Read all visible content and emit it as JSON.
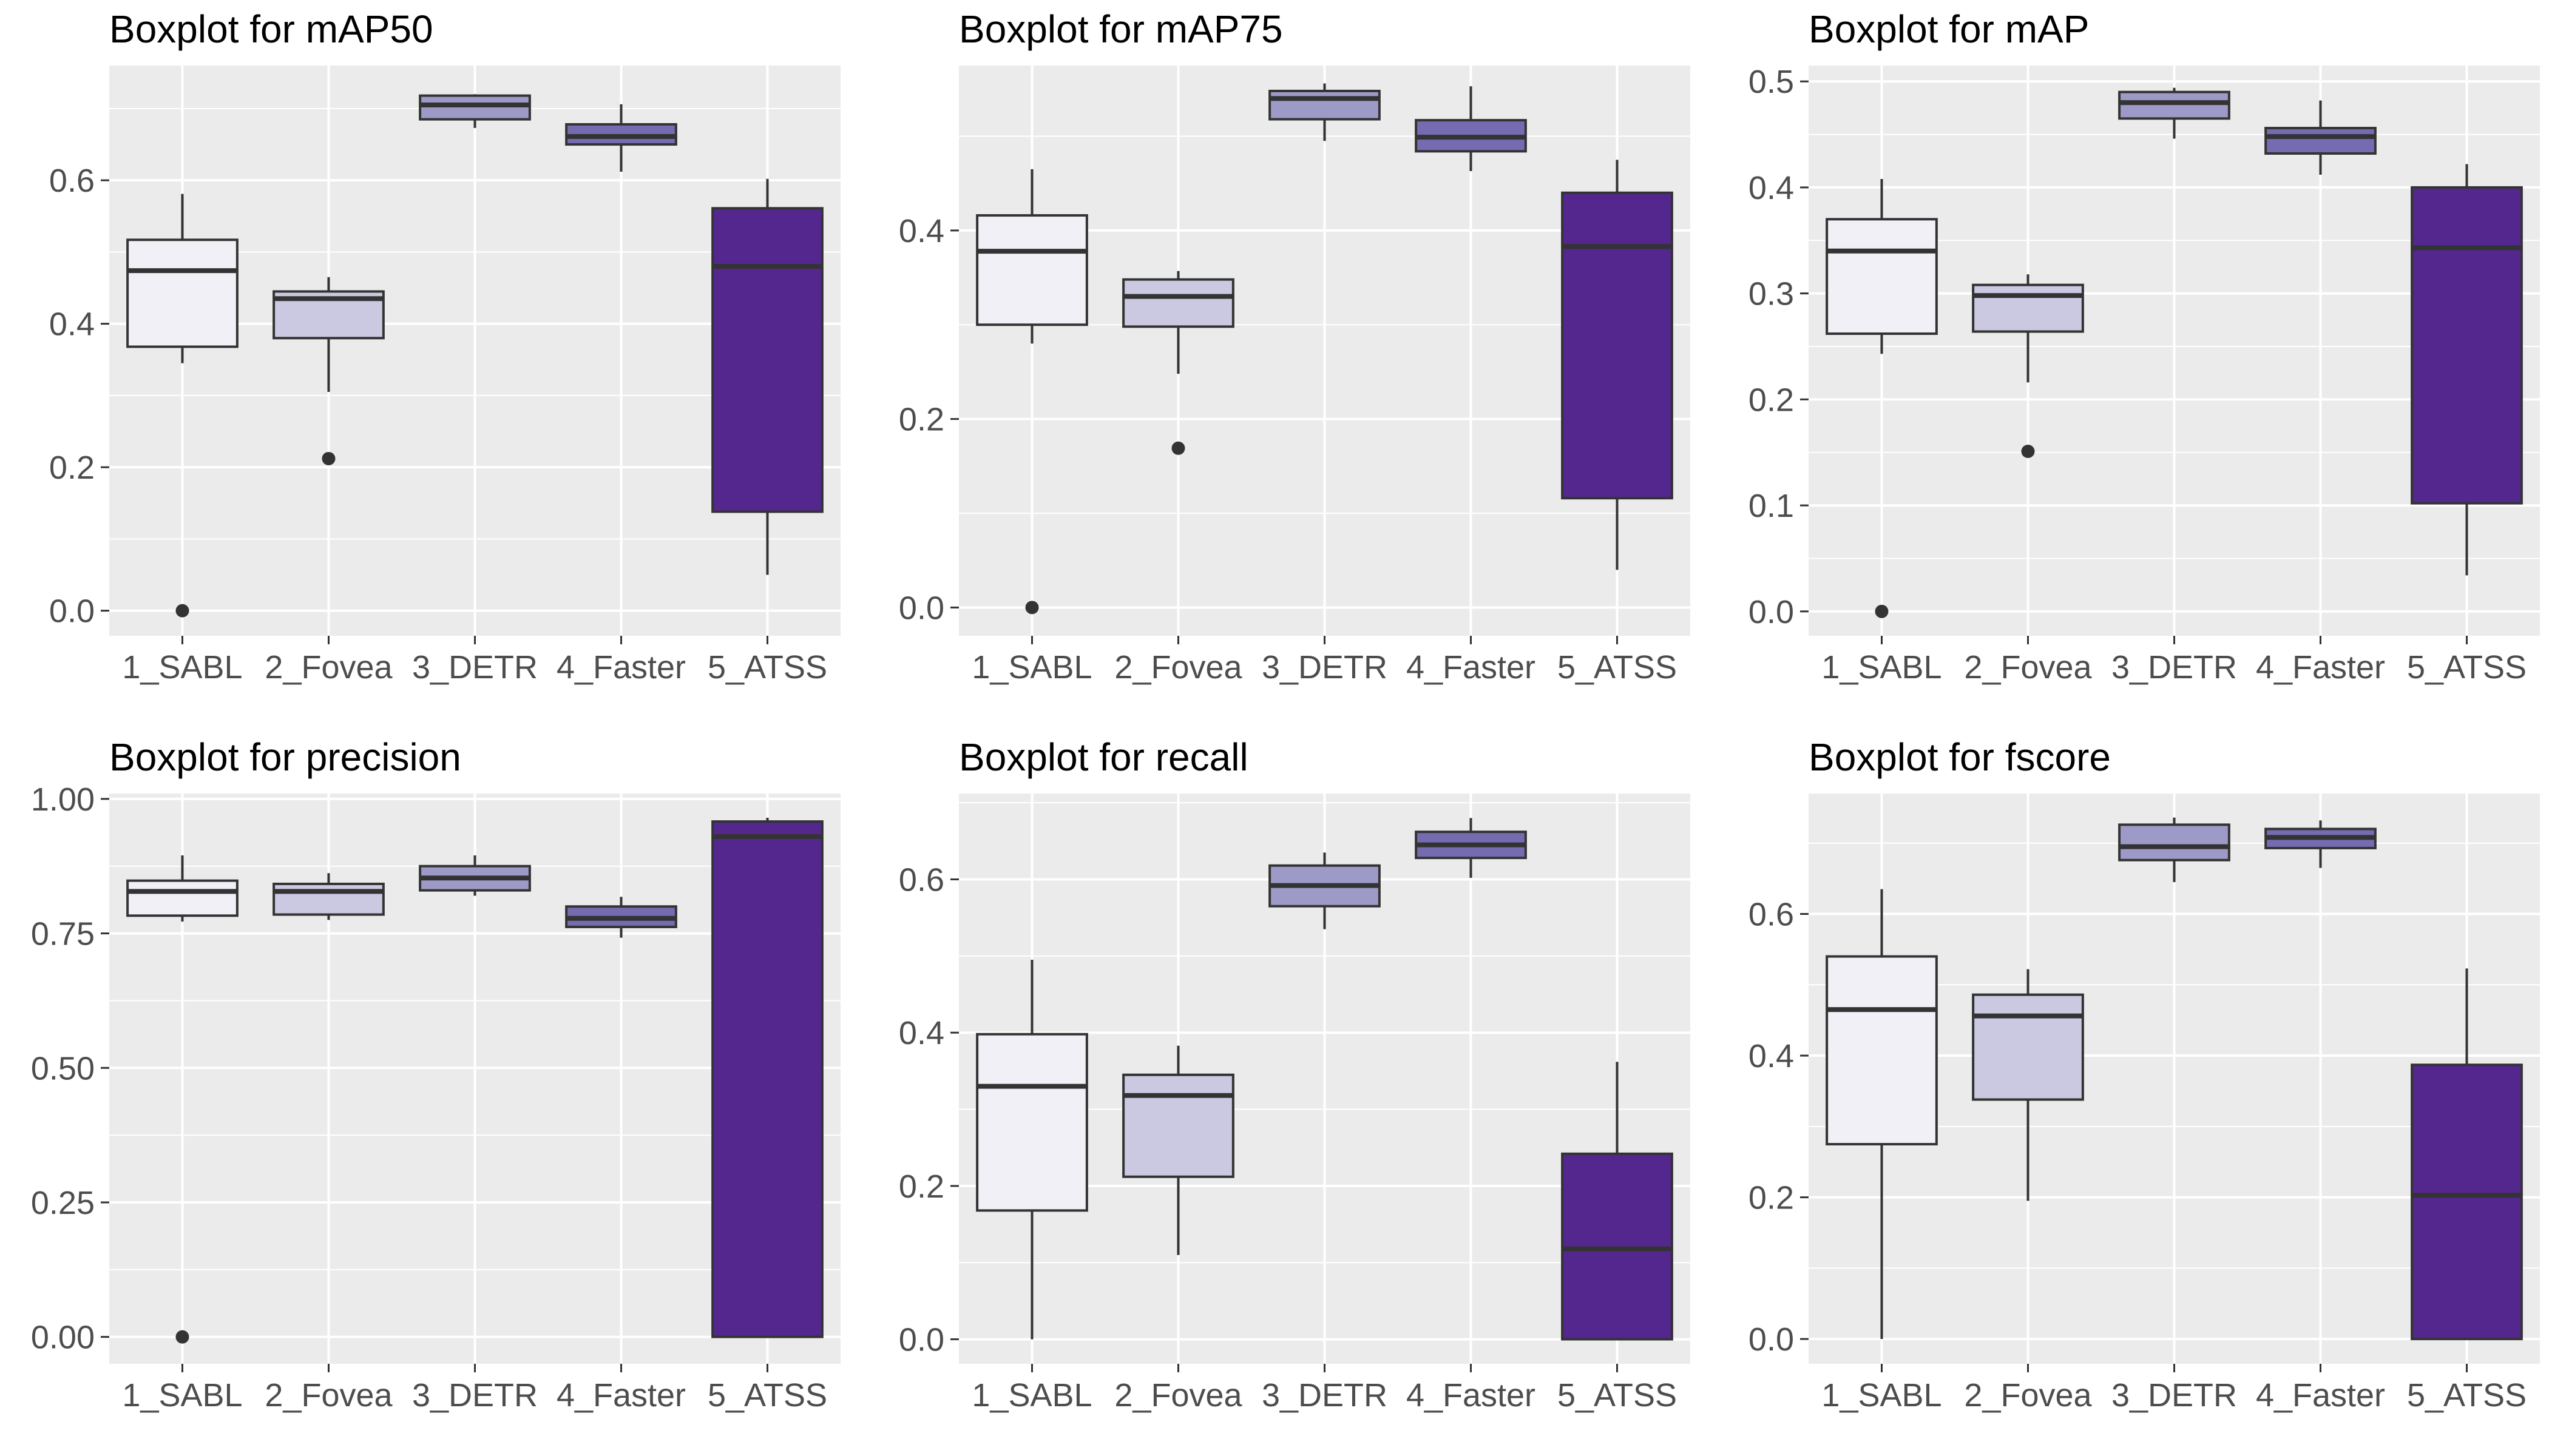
{
  "colors": {
    "panel_bg": "#EBEBEB",
    "grid": "#FFFFFF",
    "box_border": "#333333",
    "tick_text": "#4D4D4D",
    "fills": [
      "#F2F0F7",
      "#CBC9E2",
      "#9E9AC8",
      "#756BB1",
      "#54278F"
    ]
  },
  "chart_data": [
    {
      "type": "box",
      "title": "Boxplot for mAP50",
      "categories": [
        "1_SABL",
        "2_Fovea",
        "3_DETR",
        "4_Faster",
        "5_ATSS"
      ],
      "ylim": [
        -0.035,
        0.76
      ],
      "yticks": [
        0.0,
        0.2,
        0.4,
        0.6
      ],
      "ytick_labels": [
        "0.0",
        "0.2",
        "0.4",
        "0.6"
      ],
      "grid": true,
      "boxes": [
        {
          "lower_whisker": 0.345,
          "q1": 0.368,
          "median": 0.474,
          "q3": 0.517,
          "upper_whisker": 0.581,
          "outliers": [
            0.0
          ]
        },
        {
          "lower_whisker": 0.305,
          "q1": 0.38,
          "median": 0.435,
          "q3": 0.445,
          "upper_whisker": 0.465,
          "outliers": [
            0.212
          ]
        },
        {
          "lower_whisker": 0.673,
          "q1": 0.685,
          "median": 0.705,
          "q3": 0.718,
          "upper_whisker": 0.72,
          "outliers": []
        },
        {
          "lower_whisker": 0.612,
          "q1": 0.65,
          "median": 0.661,
          "q3": 0.678,
          "upper_whisker": 0.706,
          "outliers": []
        },
        {
          "lower_whisker": 0.05,
          "q1": 0.138,
          "median": 0.48,
          "q3": 0.561,
          "upper_whisker": 0.602,
          "outliers": []
        }
      ]
    },
    {
      "type": "box",
      "title": "Boxplot for mAP75",
      "categories": [
        "1_SABL",
        "2_Fovea",
        "3_DETR",
        "4_Faster",
        "5_ATSS"
      ],
      "ylim": [
        -0.03,
        0.575
      ],
      "yticks": [
        0.0,
        0.2,
        0.4
      ],
      "ytick_labels": [
        "0.0",
        "0.2",
        "0.4"
      ],
      "grid": true,
      "boxes": [
        {
          "lower_whisker": 0.28,
          "q1": 0.3,
          "median": 0.378,
          "q3": 0.416,
          "upper_whisker": 0.465,
          "outliers": [
            0.0
          ]
        },
        {
          "lower_whisker": 0.248,
          "q1": 0.298,
          "median": 0.33,
          "q3": 0.348,
          "upper_whisker": 0.357,
          "outliers": [
            0.169
          ]
        },
        {
          "lower_whisker": 0.495,
          "q1": 0.518,
          "median": 0.54,
          "q3": 0.548,
          "upper_whisker": 0.556,
          "outliers": []
        },
        {
          "lower_whisker": 0.463,
          "q1": 0.484,
          "median": 0.499,
          "q3": 0.517,
          "upper_whisker": 0.553,
          "outliers": []
        },
        {
          "lower_whisker": 0.04,
          "q1": 0.116,
          "median": 0.383,
          "q3": 0.44,
          "upper_whisker": 0.475,
          "outliers": []
        }
      ]
    },
    {
      "type": "box",
      "title": "Boxplot for mAP",
      "categories": [
        "1_SABL",
        "2_Fovea",
        "3_DETR",
        "4_Faster",
        "5_ATSS"
      ],
      "ylim": [
        -0.023,
        0.515
      ],
      "yticks": [
        0.0,
        0.1,
        0.2,
        0.3,
        0.4,
        0.5
      ],
      "ytick_labels": [
        "0.0",
        "0.1",
        "0.2",
        "0.3",
        "0.4",
        "0.5"
      ],
      "grid": true,
      "boxes": [
        {
          "lower_whisker": 0.243,
          "q1": 0.262,
          "median": 0.34,
          "q3": 0.37,
          "upper_whisker": 0.408,
          "outliers": [
            0.0
          ]
        },
        {
          "lower_whisker": 0.216,
          "q1": 0.264,
          "median": 0.298,
          "q3": 0.308,
          "upper_whisker": 0.318,
          "outliers": [
            0.151
          ]
        },
        {
          "lower_whisker": 0.446,
          "q1": 0.465,
          "median": 0.48,
          "q3": 0.49,
          "upper_whisker": 0.494,
          "outliers": []
        },
        {
          "lower_whisker": 0.412,
          "q1": 0.432,
          "median": 0.448,
          "q3": 0.456,
          "upper_whisker": 0.482,
          "outliers": []
        },
        {
          "lower_whisker": 0.034,
          "q1": 0.102,
          "median": 0.343,
          "q3": 0.4,
          "upper_whisker": 0.422,
          "outliers": []
        }
      ]
    },
    {
      "type": "box",
      "title": "Boxplot for precision",
      "categories": [
        "1_SABL",
        "2_Fovea",
        "3_DETR",
        "4_Faster",
        "5_ATSS"
      ],
      "ylim": [
        -0.05,
        1.01
      ],
      "yticks": [
        0.0,
        0.25,
        0.5,
        0.75,
        1.0
      ],
      "ytick_labels": [
        "0.00",
        "0.25",
        "0.50",
        "0.75",
        "1.00"
      ],
      "grid": true,
      "boxes": [
        {
          "lower_whisker": 0.772,
          "q1": 0.783,
          "median": 0.828,
          "q3": 0.848,
          "upper_whisker": 0.895,
          "outliers": [
            0.0
          ]
        },
        {
          "lower_whisker": 0.775,
          "q1": 0.785,
          "median": 0.828,
          "q3": 0.842,
          "upper_whisker": 0.862,
          "outliers": []
        },
        {
          "lower_whisker": 0.82,
          "q1": 0.83,
          "median": 0.853,
          "q3": 0.875,
          "upper_whisker": 0.895,
          "outliers": []
        },
        {
          "lower_whisker": 0.742,
          "q1": 0.762,
          "median": 0.778,
          "q3": 0.8,
          "upper_whisker": 0.818,
          "outliers": []
        },
        {
          "lower_whisker": 0.0,
          "q1": 0.0,
          "median": 0.93,
          "q3": 0.958,
          "upper_whisker": 0.965,
          "outliers": []
        }
      ]
    },
    {
      "type": "box",
      "title": "Boxplot for recall",
      "categories": [
        "1_SABL",
        "2_Fovea",
        "3_DETR",
        "4_Faster",
        "5_ATSS"
      ],
      "ylim": [
        -0.032,
        0.712
      ],
      "yticks": [
        0.0,
        0.2,
        0.4,
        0.6
      ],
      "ytick_labels": [
        "0.0",
        "0.2",
        "0.4",
        "0.6"
      ],
      "grid": true,
      "boxes": [
        {
          "lower_whisker": 0.0,
          "q1": 0.168,
          "median": 0.33,
          "q3": 0.398,
          "upper_whisker": 0.495,
          "outliers": []
        },
        {
          "lower_whisker": 0.11,
          "q1": 0.212,
          "median": 0.318,
          "q3": 0.345,
          "upper_whisker": 0.383,
          "outliers": []
        },
        {
          "lower_whisker": 0.535,
          "q1": 0.565,
          "median": 0.592,
          "q3": 0.618,
          "upper_whisker": 0.635,
          "outliers": []
        },
        {
          "lower_whisker": 0.602,
          "q1": 0.628,
          "median": 0.645,
          "q3": 0.662,
          "upper_whisker": 0.68,
          "outliers": []
        },
        {
          "lower_whisker": 0.0,
          "q1": 0.0,
          "median": 0.118,
          "q3": 0.242,
          "upper_whisker": 0.362,
          "outliers": []
        }
      ]
    },
    {
      "type": "box",
      "title": "Boxplot for fscore",
      "categories": [
        "1_SABL",
        "2_Fovea",
        "3_DETR",
        "4_Faster",
        "5_ATSS"
      ],
      "ylim": [
        -0.035,
        0.77
      ],
      "yticks": [
        0.0,
        0.2,
        0.4,
        0.6
      ],
      "ytick_labels": [
        "0.0",
        "0.2",
        "0.4",
        "0.6"
      ],
      "grid": true,
      "boxes": [
        {
          "lower_whisker": 0.0,
          "q1": 0.275,
          "median": 0.465,
          "q3": 0.54,
          "upper_whisker": 0.635,
          "outliers": []
        },
        {
          "lower_whisker": 0.195,
          "q1": 0.338,
          "median": 0.456,
          "q3": 0.486,
          "upper_whisker": 0.522,
          "outliers": []
        },
        {
          "lower_whisker": 0.645,
          "q1": 0.676,
          "median": 0.695,
          "q3": 0.726,
          "upper_whisker": 0.736,
          "outliers": []
        },
        {
          "lower_whisker": 0.665,
          "q1": 0.693,
          "median": 0.708,
          "q3": 0.72,
          "upper_whisker": 0.732,
          "outliers": []
        },
        {
          "lower_whisker": 0.0,
          "q1": 0.0,
          "median": 0.203,
          "q3": 0.387,
          "upper_whisker": 0.523,
          "outliers": []
        }
      ]
    }
  ]
}
